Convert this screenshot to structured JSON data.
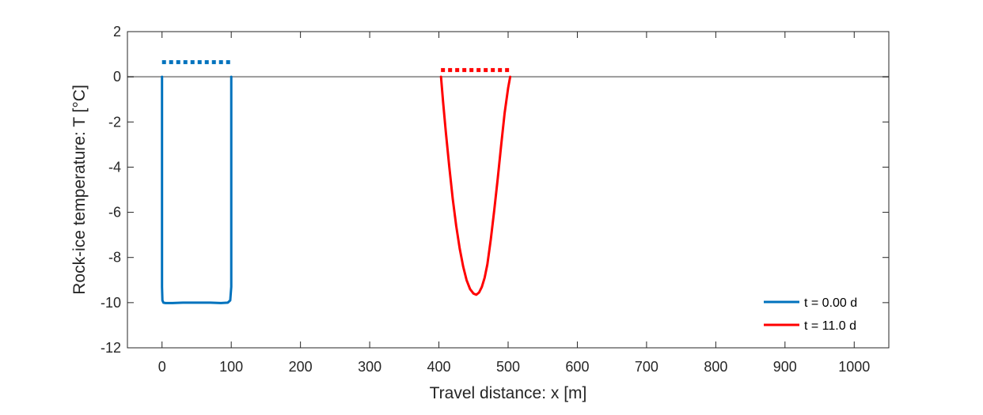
{
  "chart_data": {
    "type": "line",
    "title": "",
    "xlabel": "Travel distance: x [m]",
    "ylabel": "Rock-ice temperature: T [°C]",
    "xlim": [
      -50,
      1050
    ],
    "ylim": [
      -12,
      2
    ],
    "xticks": [
      0,
      100,
      200,
      300,
      400,
      500,
      600,
      700,
      800,
      900,
      1000
    ],
    "yticks": [
      2,
      0,
      -2,
      -4,
      -6,
      -8,
      -10,
      -12
    ],
    "grid": false,
    "legend_position": "bottom-right",
    "zero_line": {
      "y": 0,
      "color": "#999999"
    },
    "series": [
      {
        "name": "t = 0.00 d",
        "color": "#0072BD",
        "x": [
          0,
          0,
          0.5,
          2,
          5,
          15,
          30,
          50,
          70,
          85,
          95,
          98.5,
          100,
          100
        ],
        "y": [
          0,
          -9.3,
          -9.9,
          -10.0,
          -10.02,
          -10.02,
          -10.0,
          -10.0,
          -10.0,
          -10.02,
          -10.0,
          -9.9,
          -9.3,
          0
        ]
      },
      {
        "name": "t = 11.0 d",
        "color": "#FF0000",
        "x": [
          403,
          406,
          410,
          415,
          420,
          425,
          430,
          435,
          440,
          445,
          450,
          454,
          458,
          462,
          466,
          470,
          475,
          480,
          485,
          490,
          495,
          500,
          503
        ],
        "y": [
          0,
          -1.1,
          -2.45,
          -4.0,
          -5.4,
          -6.6,
          -7.6,
          -8.4,
          -9.0,
          -9.4,
          -9.6,
          -9.65,
          -9.55,
          -9.3,
          -8.9,
          -8.3,
          -7.2,
          -5.9,
          -4.5,
          -3.0,
          -1.6,
          -0.5,
          0
        ]
      }
    ],
    "dotted_markers": [
      {
        "color": "#0072BD",
        "x_start": 0,
        "x_end": 100,
        "y": 0.65
      },
      {
        "color": "#FF0000",
        "x_start": 403,
        "x_end": 503,
        "y": 0.3
      }
    ]
  }
}
